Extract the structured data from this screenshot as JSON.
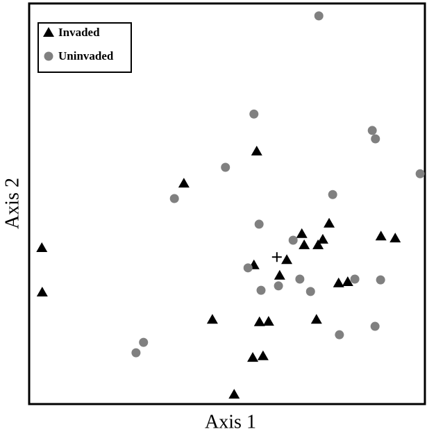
{
  "chart_data": {
    "type": "scatter",
    "x_label": "Axis 1",
    "y_label": "Axis 2",
    "xlim": [
      0,
      100
    ],
    "ylim": [
      0,
      100
    ],
    "legend": "upper left",
    "series": [
      {
        "name": "Invaded",
        "color": "#000000",
        "marker": "triangle",
        "x": [
          3.2,
          3.3,
          39.1,
          57.5,
          46.3,
          51.8,
          56.5,
          59.1,
          58.2,
          60.5,
          56.8,
          63.3,
          65.1,
          68.9,
          69.5,
          73.0,
          74.2,
          75.8,
          72.6,
          78.2,
          80.5,
          88.9,
          92.5
        ],
        "y": [
          39.0,
          27.9,
          55.1,
          63.1,
          21.1,
          2.4,
          11.6,
          12.0,
          20.5,
          20.6,
          34.7,
          32.1,
          36.0,
          42.5,
          39.7,
          39.7,
          41.1,
          45.1,
          21.1,
          30.2,
          30.5,
          41.9,
          41.4
        ]
      },
      {
        "name": "Uninvaded",
        "color": "#808080",
        "marker": "circle",
        "x": [
          73.2,
          56.8,
          86.7,
          87.5,
          98.8,
          49.6,
          36.7,
          76.7,
          58.1,
          66.7,
          55.3,
          63.0,
          58.6,
          68.4,
          71.1,
          82.3,
          88.8,
          87.4,
          78.4,
          28.9,
          27.0
        ],
        "y": [
          96.9,
          72.4,
          68.3,
          66.2,
          57.5,
          59.1,
          51.3,
          52.3,
          44.9,
          40.9,
          34.0,
          29.5,
          28.4,
          31.2,
          28.1,
          31.2,
          31.0,
          19.4,
          17.3,
          15.4,
          12.8
        ]
      }
    ],
    "centroid": {
      "x": 62.6,
      "y": 36.7
    }
  }
}
